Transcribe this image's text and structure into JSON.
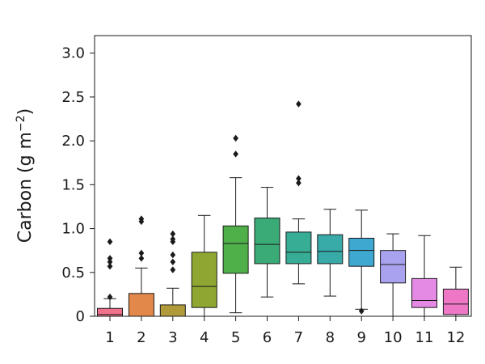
{
  "chart_data": {
    "type": "box",
    "ylabel_main": "Carbon (g m",
    "ylabel_sup": "−2",
    "ylabel_close": ")",
    "xlabel": "",
    "ylim": [
      0,
      3.2
    ],
    "yticks": [
      0,
      0.5,
      1.0,
      1.5,
      2.0,
      2.5,
      3.0
    ],
    "ytick_labels": [
      "0",
      "0.5",
      "1.0",
      "1.5",
      "2.0",
      "2.5",
      "3.0"
    ],
    "categories": [
      "1",
      "2",
      "3",
      "4",
      "5",
      "6",
      "7",
      "8",
      "9",
      "10",
      "11",
      "12"
    ],
    "colors": [
      "#f0728c",
      "#e2884a",
      "#b19a3a",
      "#8fa632",
      "#4fb04a",
      "#3aaa76",
      "#37ad95",
      "#38aaa8",
      "#3fa8d0",
      "#a9a3ef",
      "#e48ae5",
      "#ef78c6"
    ],
    "boxes": [
      {
        "whisker_low": 0,
        "q1": 0,
        "median": 0.02,
        "q3": 0.09,
        "whisker_high": 0.2,
        "outliers": [
          0.22,
          0.57,
          0.62,
          0.66,
          0.85
        ]
      },
      {
        "whisker_low": 0,
        "q1": 0,
        "median": 0,
        "q3": 0.26,
        "whisker_high": 0.55,
        "outliers": [
          0.66,
          0.72,
          1.08,
          1.11
        ]
      },
      {
        "whisker_low": 0,
        "q1": 0,
        "median": 0,
        "q3": 0.13,
        "whisker_high": 0.32,
        "outliers": [
          0.53,
          0.62,
          0.7,
          0.85,
          0.88,
          0.94
        ]
      },
      {
        "whisker_low": 0,
        "q1": 0.1,
        "median": 0.34,
        "q3": 0.73,
        "whisker_high": 1.15,
        "outliers": []
      },
      {
        "whisker_low": 0.04,
        "q1": 0.49,
        "median": 0.83,
        "q3": 1.03,
        "whisker_high": 1.58,
        "outliers": [
          1.85,
          2.03
        ]
      },
      {
        "whisker_low": 0.22,
        "q1": 0.6,
        "median": 0.82,
        "q3": 1.12,
        "whisker_high": 1.47,
        "outliers": []
      },
      {
        "whisker_low": 0.37,
        "q1": 0.6,
        "median": 0.73,
        "q3": 0.96,
        "whisker_high": 1.11,
        "outliers": [
          1.52,
          1.57,
          2.42
        ]
      },
      {
        "whisker_low": 0.23,
        "q1": 0.6,
        "median": 0.74,
        "q3": 0.93,
        "whisker_high": 1.22,
        "outliers": []
      },
      {
        "whisker_low": 0.08,
        "q1": 0.57,
        "median": 0.75,
        "q3": 0.89,
        "whisker_high": 1.21,
        "outliers": [
          0.06
        ]
      },
      {
        "whisker_low": 0,
        "q1": 0.38,
        "median": 0.59,
        "q3": 0.75,
        "whisker_high": 0.94,
        "outliers": []
      },
      {
        "whisker_low": 0,
        "q1": 0.1,
        "median": 0.18,
        "q3": 0.43,
        "whisker_high": 0.92,
        "outliers": []
      },
      {
        "whisker_low": 0,
        "q1": 0.02,
        "median": 0.14,
        "q3": 0.31,
        "whisker_high": 0.56,
        "outliers": []
      }
    ],
    "grid": false,
    "legend": "none"
  }
}
